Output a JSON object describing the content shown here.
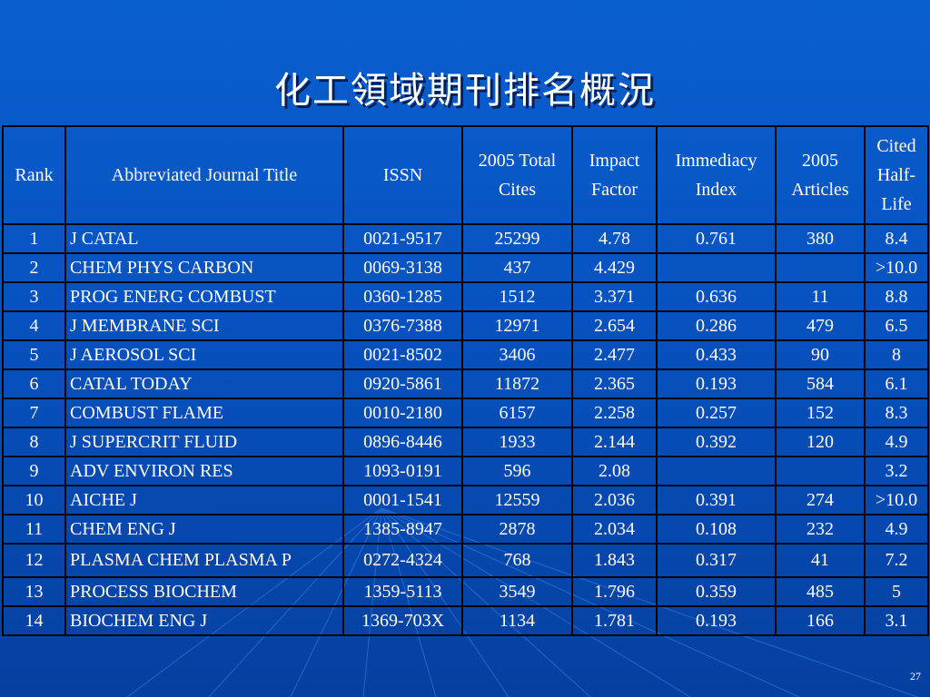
{
  "title": "化工領域期刊排名概況",
  "columns": [
    "Rank",
    "Abbreviated Journal Title",
    "ISSN",
    "2005 Total Cites",
    "Impact Factor",
    "Immediacy Index",
    "2005 Articles",
    "Cited Half-Life"
  ],
  "rows": [
    {
      "rank": "1",
      "title": "J CATAL",
      "issn": "0021-9517",
      "cites": "25299",
      "impact": "4.78",
      "immediacy": "0.761",
      "articles": "380",
      "halflife": "8.4"
    },
    {
      "rank": "2",
      "title": "CHEM PHYS CARBON",
      "issn": "0069-3138",
      "cites": "437",
      "impact": "4.429",
      "immediacy": "",
      "articles": "",
      "halflife": ">10.0"
    },
    {
      "rank": "3",
      "title": "PROG ENERG COMBUST",
      "issn": "0360-1285",
      "cites": "1512",
      "impact": "3.371",
      "immediacy": "0.636",
      "articles": "11",
      "halflife": "8.8"
    },
    {
      "rank": "4",
      "title": "J MEMBRANE SCI",
      "issn": "0376-7388",
      "cites": "12971",
      "impact": "2.654",
      "immediacy": "0.286",
      "articles": "479",
      "halflife": "6.5"
    },
    {
      "rank": "5",
      "title": "J AEROSOL SCI",
      "issn": "0021-8502",
      "cites": "3406",
      "impact": "2.477",
      "immediacy": "0.433",
      "articles": "90",
      "halflife": "8"
    },
    {
      "rank": "6",
      "title": "CATAL TODAY",
      "issn": "0920-5861",
      "cites": "11872",
      "impact": "2.365",
      "immediacy": "0.193",
      "articles": "584",
      "halflife": "6.1"
    },
    {
      "rank": "7",
      "title": "COMBUST FLAME",
      "issn": "0010-2180",
      "cites": "6157",
      "impact": "2.258",
      "immediacy": "0.257",
      "articles": "152",
      "halflife": "8.3"
    },
    {
      "rank": "8",
      "title": "J SUPERCRIT FLUID",
      "issn": "0896-8446",
      "cites": "1933",
      "impact": "2.144",
      "immediacy": "0.392",
      "articles": "120",
      "halflife": "4.9"
    },
    {
      "rank": "9",
      "title": "ADV ENVIRON RES",
      "issn": "1093-0191",
      "cites": "596",
      "impact": "2.08",
      "immediacy": "",
      "articles": "",
      "halflife": "3.2"
    },
    {
      "rank": "10",
      "title": "AICHE J",
      "issn": "0001-1541",
      "cites": "12559",
      "impact": "2.036",
      "immediacy": "0.391",
      "articles": "274",
      "halflife": ">10.0"
    },
    {
      "rank": "11",
      "title": "CHEM ENG J",
      "issn": "1385-8947",
      "cites": "2878",
      "impact": "2.034",
      "immediacy": "0.108",
      "articles": "232",
      "halflife": "4.9"
    },
    {
      "rank": "12",
      "title": "PLASMA CHEM PLASMA P",
      "issn": "0272-4324",
      "cites": "768",
      "impact": "1.843",
      "immediacy": "0.317",
      "articles": "41",
      "halflife": "7.2"
    },
    {
      "rank": "13",
      "title": "PROCESS BIOCHEM",
      "issn": "1359-5113",
      "cites": "3549",
      "impact": "1.796",
      "immediacy": "0.359",
      "articles": "485",
      "halflife": "5"
    },
    {
      "rank": "14",
      "title": "BIOCHEM ENG J",
      "issn": "1369-703X",
      "cites": "1134",
      "impact": "1.781",
      "immediacy": "0.193",
      "articles": "166",
      "halflife": "3.1"
    }
  ],
  "page_number": "27"
}
